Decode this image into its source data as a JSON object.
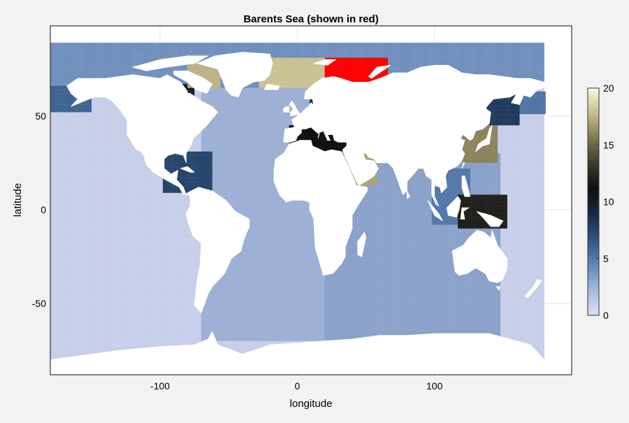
{
  "chart_data": {
    "type": "scatter",
    "title": "Barents Sea (shown in red)",
    "xlabel": "longitude",
    "ylabel": "latitude",
    "xlim": [
      -180,
      200
    ],
    "ylim": [
      -88,
      98
    ],
    "xticks": [
      -100,
      0,
      100
    ],
    "xtick_labels": [
      "-100",
      "0",
      "100"
    ],
    "yticks": [
      -50,
      0,
      50
    ],
    "ytick_labels": [
      "-50",
      "0",
      "50"
    ],
    "grid": true,
    "colorbar": {
      "range": [
        0,
        20
      ],
      "ticks": [
        0,
        5,
        10,
        15,
        20
      ],
      "tick_labels": [
        "0",
        "5",
        "10",
        "15",
        "20"
      ],
      "colormap": [
        "#dde0f5",
        "#a9b9dc",
        "#6285b4",
        "#2e5585",
        "#172a42",
        "#0e0e0e",
        "#3b3a2a",
        "#7f7650",
        "#c7bd8c",
        "#fbfae0"
      ]
    },
    "highlight_color": "#ff0000",
    "regions": [
      {
        "value": 1.0,
        "lon": [
          -180,
          180
        ],
        "lat": [
          -80,
          70
        ]
      },
      {
        "value": 2.6,
        "lon": [
          -70,
          20
        ],
        "lat": [
          -70,
          70
        ]
      },
      {
        "value": 3.2,
        "lon": [
          20,
          147
        ],
        "lat": [
          -70,
          30
        ]
      },
      {
        "value": 4.0,
        "lon": [
          -180,
          180
        ],
        "lat": [
          65,
          88
        ]
      },
      {
        "value": 6.0,
        "lon": [
          -180,
          -150
        ],
        "lat": [
          52,
          66
        ]
      },
      {
        "value": 5.2,
        "lon": [
          155,
          180
        ],
        "lat": [
          51,
          62
        ]
      },
      {
        "value": 8.0,
        "lon": [
          138,
          162
        ],
        "lat": [
          45,
          60
        ]
      },
      {
        "value": 7.5,
        "lon": [
          -98,
          -62
        ],
        "lat": [
          9,
          31
        ]
      },
      {
        "value": 5.0,
        "lon": [
          98,
          126
        ],
        "lat": [
          -8,
          22
        ]
      },
      {
        "value": 10.0,
        "lon": [
          -95,
          -75
        ],
        "lat": [
          51,
          66
        ]
      },
      {
        "value": 11.0,
        "lon": [
          -6,
          36
        ],
        "lat": [
          31,
          45
        ]
      },
      {
        "value": 13.0,
        "lon": [
          9,
          30
        ],
        "lat": [
          54,
          66
        ]
      },
      {
        "value": 12.0,
        "lon": [
          117,
          152
        ],
        "lat": [
          -10,
          8
        ]
      },
      {
        "value": 16.0,
        "lon": [
          120,
          145
        ],
        "lat": [
          25,
          45
        ]
      },
      {
        "value": 17.0,
        "lon": [
          32,
          58
        ],
        "lat": [
          13,
          30
        ]
      },
      {
        "value": 17.5,
        "lon": [
          -80,
          -56
        ],
        "lat": [
          65,
          78
        ]
      },
      {
        "value": 18.0,
        "lon": [
          -28,
          20
        ],
        "lat": [
          65,
          81
        ]
      },
      {
        "value": "highlight",
        "lon": [
          20,
          66
        ],
        "lat": [
          67,
          81
        ]
      }
    ]
  }
}
